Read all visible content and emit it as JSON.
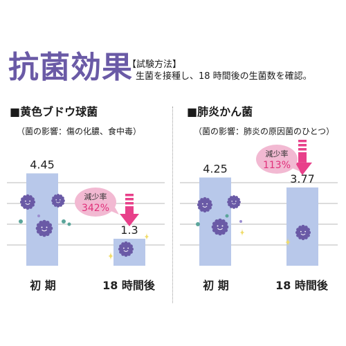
{
  "title": "抗菌効果",
  "method": {
    "label": "【試験方法】",
    "description": "生菌を接種し、18 時間後の生菌数を確認。"
  },
  "colors": {
    "title": "#6a5aa6",
    "bar": "#b8c8ea",
    "grid": "#c8c8c8",
    "arrow": "#e8408a",
    "badge": "#f2b9d2",
    "badge_text": "#e0307a"
  },
  "chart_data": [
    {
      "type": "bar",
      "title": "■黄色ブドウ球菌",
      "subtitle": "（菌の影響：傷の化膿、食中毒）",
      "categories": [
        "初 期",
        "18 時間後"
      ],
      "values": [
        4.45,
        1.3
      ],
      "value_labels": [
        "4.45",
        "1.3"
      ],
      "ylim": [
        0,
        5
      ],
      "grid": true,
      "annotation": {
        "label": "減少率",
        "value": "342%"
      }
    },
    {
      "type": "bar",
      "title": "■肺炎かん菌",
      "subtitle": "（菌の影響：肺炎の原因菌のひとつ）",
      "categories": [
        "初 期",
        "18 時間後"
      ],
      "values": [
        4.25,
        3.77
      ],
      "value_labels": [
        "4.25",
        "3.77"
      ],
      "ylim": [
        0,
        5
      ],
      "grid": true,
      "annotation": {
        "label": "減少率",
        "value": "113%"
      }
    }
  ]
}
